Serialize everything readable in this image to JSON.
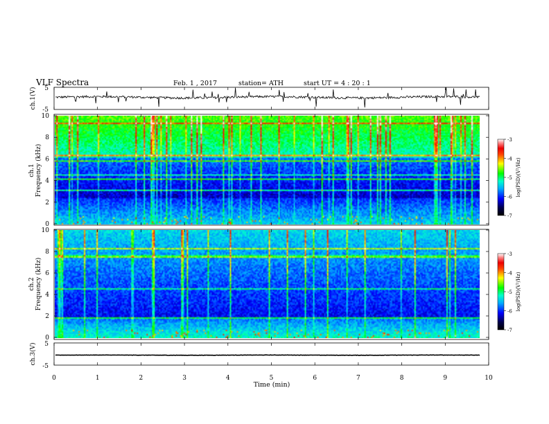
{
  "header": {
    "title": "VLF  Spectra",
    "date": "Feb. 1  , 2017",
    "station": "station= ATH",
    "start": "start  UT  =   4  : 20 : 1"
  },
  "chart_data": [
    {
      "type": "line",
      "panel": "ch1-waveform",
      "ylabel": "ch.1(V)",
      "ylim": [
        -5,
        5
      ],
      "yticks": [
        "5",
        "-5"
      ],
      "xlim": [
        0,
        10
      ],
      "description_values": {
        "baseline": 0.5,
        "noise_amplitude": 1.0
      }
    },
    {
      "type": "heatmap",
      "panel": "ch1-spectrogram",
      "ylabel_channel": "ch.1",
      "ylabel": "Frequency  (kHz)",
      "ylim": [
        0,
        10
      ],
      "yticks": [
        "0",
        "2",
        "4",
        "6",
        "8",
        "10"
      ],
      "xlim": [
        0,
        9.8
      ],
      "colorbar": {
        "label": "log(PSD)(V²/Hz)",
        "ticks": [
          "-3",
          "-4",
          "-5",
          "-6",
          "-7"
        ],
        "range": [
          -7,
          -3
        ]
      }
    },
    {
      "type": "heatmap",
      "panel": "ch2-spectrogram",
      "ylabel_channel": "ch.2",
      "ylabel": "Frequency  (kHz)",
      "ylim": [
        0,
        10
      ],
      "yticks": [
        "0",
        "2",
        "4",
        "6",
        "8",
        "10"
      ],
      "xlim": [
        0,
        9.8
      ],
      "colorbar": {
        "label": "log(PSD)(V²/Hz)",
        "ticks": [
          "-3",
          "-4",
          "-5",
          "-6",
          "-7"
        ],
        "range": [
          -7,
          -3
        ]
      }
    },
    {
      "type": "line",
      "panel": "ch3-waveform",
      "ylabel": "ch.3(V)",
      "ylim": [
        -5,
        5
      ],
      "yticks": [
        "5",
        "-5"
      ],
      "xlim": [
        0,
        10
      ],
      "xlabel": "Time  (min)",
      "xticks": [
        "0",
        "1",
        "2",
        "3",
        "4",
        "5",
        "6",
        "7",
        "8",
        "9",
        "10"
      ],
      "description_values": {
        "baseline": -0.5,
        "noise_amplitude": 0.15
      }
    }
  ]
}
